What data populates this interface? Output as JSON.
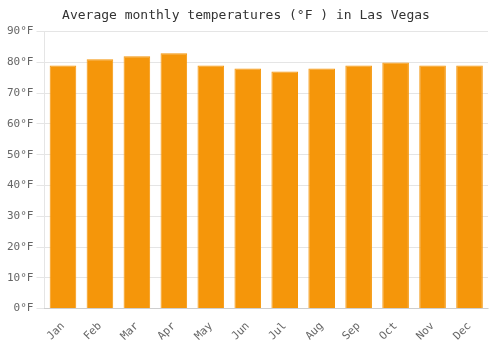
{
  "chart_data": {
    "type": "bar",
    "title": "Average monthly temperatures (°F ) in Las Vegas",
    "categories": [
      "Jan",
      "Feb",
      "Mar",
      "Apr",
      "May",
      "Jun",
      "Jul",
      "Aug",
      "Sep",
      "Oct",
      "Nov",
      "Dec"
    ],
    "values": [
      79,
      81,
      82,
      83,
      79,
      78,
      77,
      78,
      79,
      80,
      79,
      79
    ],
    "color": "#F5960A",
    "ylim": [
      0,
      90
    ],
    "yticks": [
      {
        "value": 0,
        "label": "0°F"
      },
      {
        "value": 10,
        "label": "10°F"
      },
      {
        "value": 20,
        "label": "20°F"
      },
      {
        "value": 30,
        "label": "30°F"
      },
      {
        "value": 40,
        "label": "40°F"
      },
      {
        "value": 50,
        "label": "50°F"
      },
      {
        "value": 60,
        "label": "60°F"
      },
      {
        "value": 70,
        "label": "70°F"
      },
      {
        "value": 80,
        "label": "80°F"
      },
      {
        "value": 90,
        "label": "90°F"
      }
    ],
    "grid": true
  }
}
